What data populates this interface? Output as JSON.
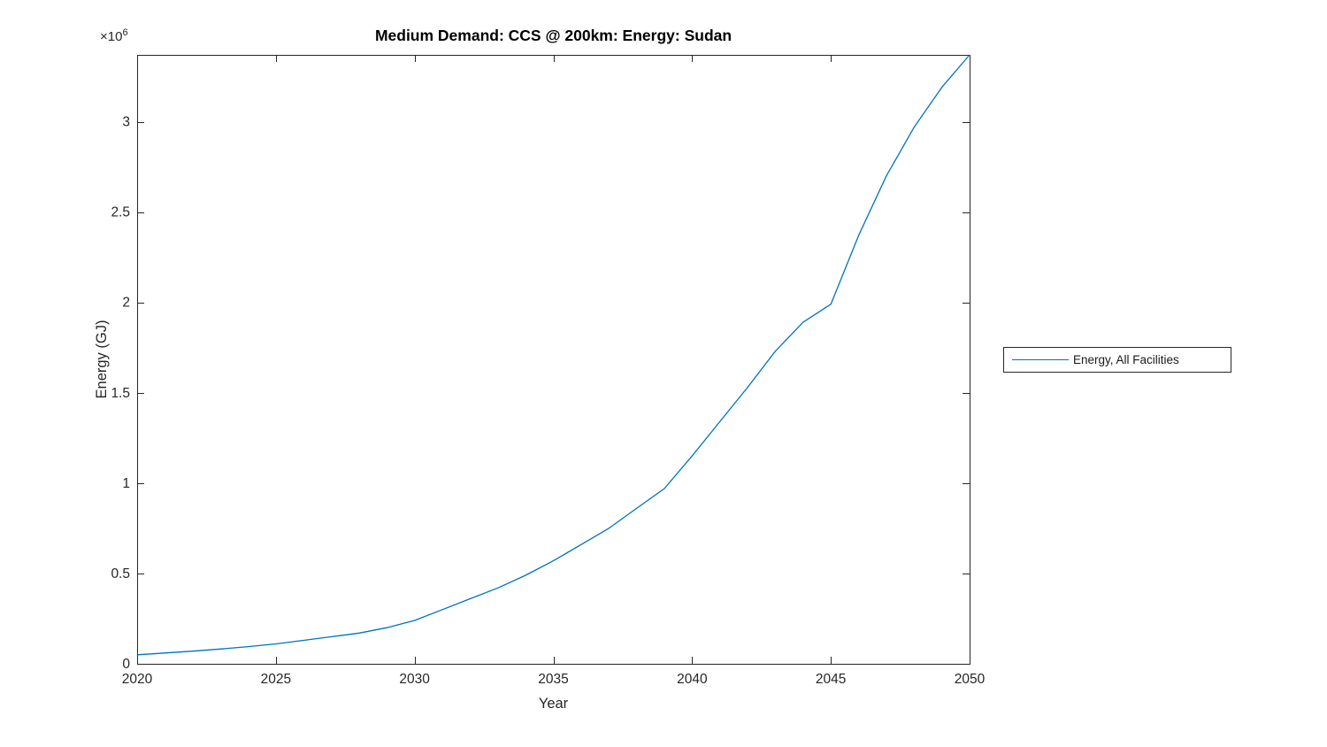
{
  "title": "Medium Demand: CCS @ 200km: Energy: Sudan",
  "axes": {
    "xlabel": "Year",
    "ylabel": "Energy (GJ)",
    "y_multiplier_base": "×10",
    "y_multiplier_exp": "6"
  },
  "legend": {
    "entries": [
      {
        "label": "Energy, All Facilities",
        "color": "#0072BD"
      }
    ]
  },
  "colors": {
    "line": "#0072BD",
    "axis": "#262626",
    "background": "#ffffff"
  },
  "chart_data": {
    "type": "line",
    "title": "Medium Demand: CCS @ 200km: Energy: Sudan",
    "xlabel": "Year",
    "ylabel": "Energy (GJ)",
    "grid": false,
    "box": true,
    "tick_direction": "in",
    "legend_position": "outside-right",
    "xlim": [
      2020,
      2050
    ],
    "ylim": [
      0,
      3370000
    ],
    "xticks": {
      "values": [
        2020,
        2025,
        2030,
        2035,
        2040,
        2045,
        2050
      ],
      "labels": [
        "2020",
        "2025",
        "2030",
        "2035",
        "2040",
        "2045",
        "2050"
      ]
    },
    "yticks": {
      "values": [
        0,
        500000,
        1000000,
        1500000,
        2000000,
        2500000,
        3000000
      ],
      "labels": [
        "0",
        "0.5",
        "1",
        "1.5",
        "2",
        "2.5",
        "3"
      ]
    },
    "series": [
      {
        "name": "Energy, All Facilities",
        "color": "#0072BD",
        "x": [
          2020,
          2021,
          2022,
          2023,
          2024,
          2025,
          2026,
          2027,
          2028,
          2029,
          2030,
          2031,
          2032,
          2033,
          2034,
          2035,
          2036,
          2037,
          2038,
          2039,
          2040,
          2041,
          2042,
          2043,
          2044,
          2045,
          2046,
          2047,
          2048,
          2049,
          2050
        ],
        "y": [
          50000,
          60000,
          70000,
          82000,
          95000,
          110000,
          130000,
          150000,
          170000,
          200000,
          240000,
          300000,
          360000,
          420000,
          490000,
          570000,
          660000,
          750000,
          860000,
          970000,
          1150000,
          1340000,
          1530000,
          1730000,
          1890000,
          1990000,
          2370000,
          2700000,
          2970000,
          3190000,
          3370000
        ]
      }
    ]
  }
}
